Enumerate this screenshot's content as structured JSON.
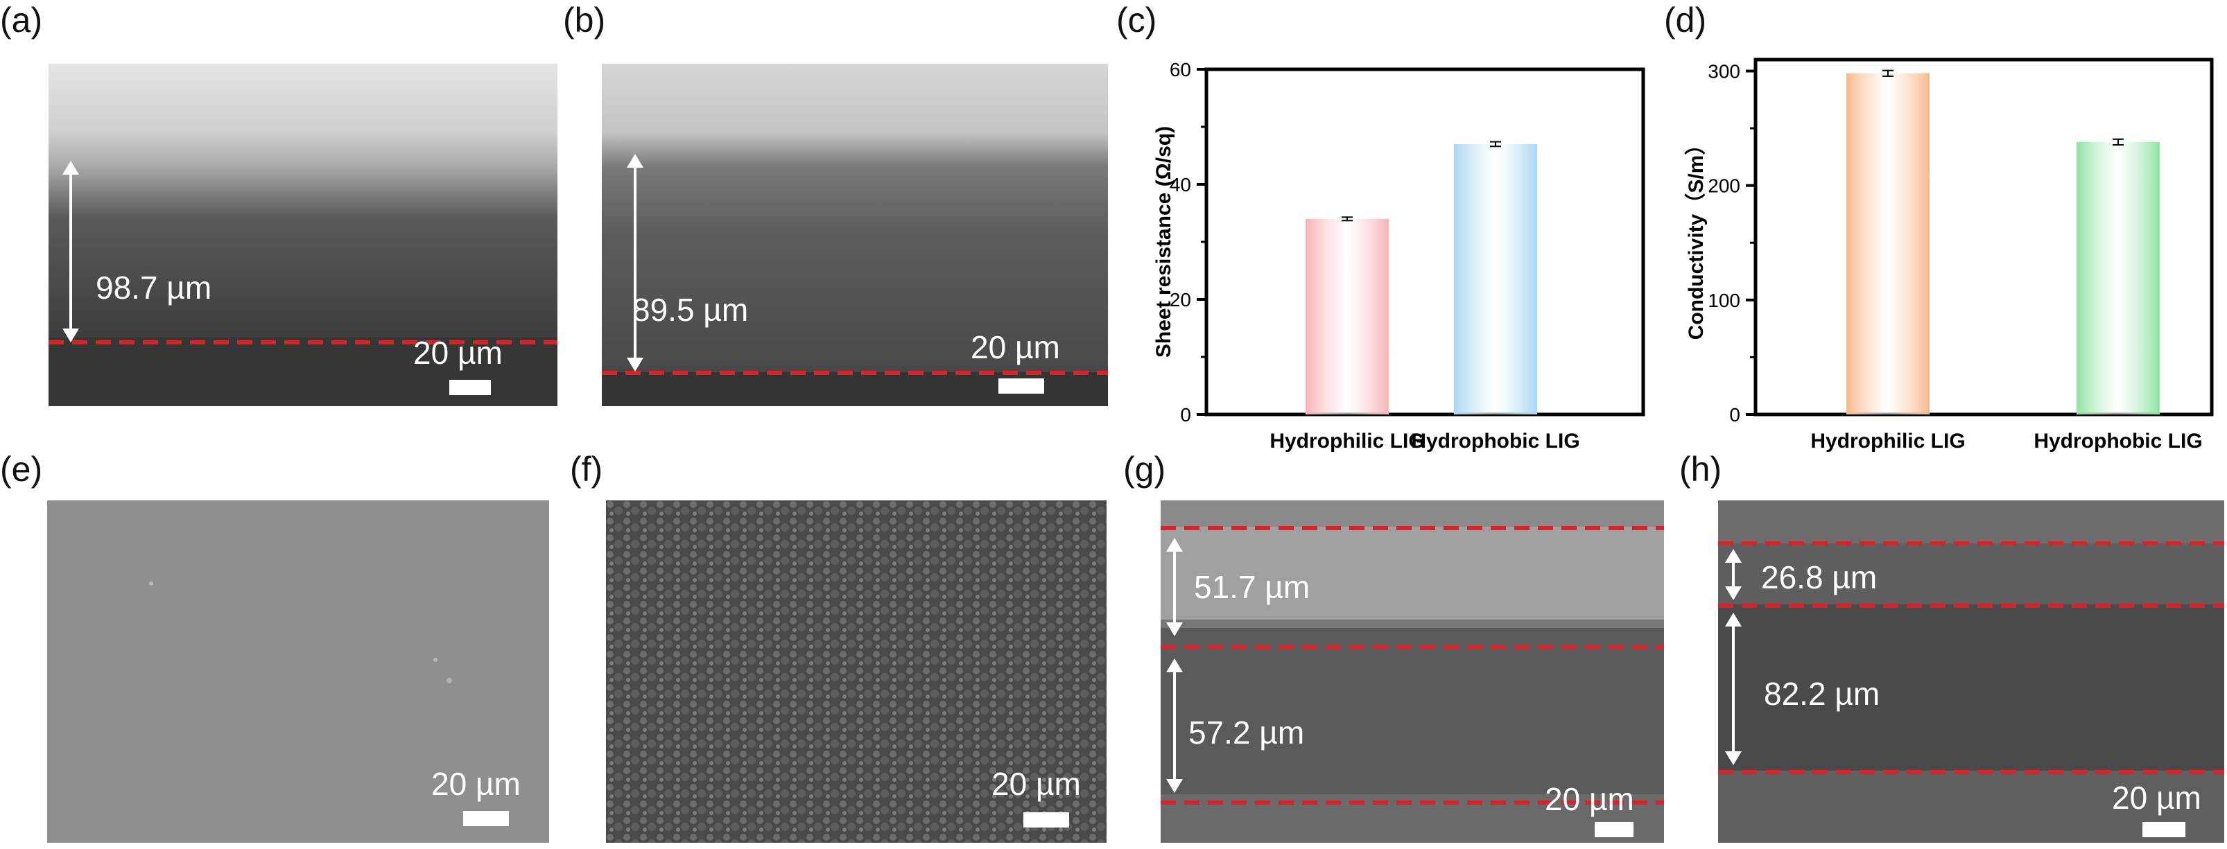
{
  "panels": {
    "a": {
      "label": "(a)",
      "thickness": "98.7 µm",
      "scale": "20 µm"
    },
    "b": {
      "label": "(b)",
      "thickness": "89.5 µm",
      "scale": "20 µm"
    },
    "c": {
      "label": "(c)"
    },
    "d": {
      "label": "(d)"
    },
    "e": {
      "label": "(e)",
      "scale": "20 µm"
    },
    "f": {
      "label": "(f)",
      "scale": "20 µm"
    },
    "g": {
      "label": "(g)",
      "top_thickness": "51.7 µm",
      "bottom_thickness": "57.2 µm",
      "scale": "20 µm"
    },
    "h": {
      "label": "(h)",
      "top_thickness": "26.8 µm",
      "bottom_thickness": "82.2 µm",
      "scale": "20 µm"
    }
  },
  "colors": {
    "dashed_line": "#d9232a",
    "bar_pink": "#f7b3b6",
    "bar_blue": "#a9d7f2",
    "bar_orange": "#f7b98a",
    "bar_green": "#8ee3a3"
  },
  "chart_data": [
    {
      "type": "bar",
      "categories": [
        "Hydrophilic LIG",
        "Hydrophobic LIG"
      ],
      "values": [
        34.0,
        47.0
      ],
      "errors": [
        0.3,
        0.4
      ],
      "ylabel": "Sheet resistance (Ω/sq)",
      "xlabel": "",
      "ylim": [
        0,
        60
      ],
      "yticks": [
        0,
        20,
        40,
        60
      ],
      "colors": [
        "#f7b3b6",
        "#a9d7f2"
      ]
    },
    {
      "type": "bar",
      "categories": [
        "Hydrophilic LIG",
        "Hydrophobic LIG"
      ],
      "values": [
        298,
        238
      ],
      "errors": [
        2.5,
        2.5
      ],
      "ylabel": "Conductivity（S/m）",
      "xlabel": "",
      "ylim": [
        0,
        310
      ],
      "yticks": [
        0,
        100,
        200,
        300
      ],
      "colors": [
        "#f7b98a",
        "#8ee3a3"
      ]
    }
  ]
}
